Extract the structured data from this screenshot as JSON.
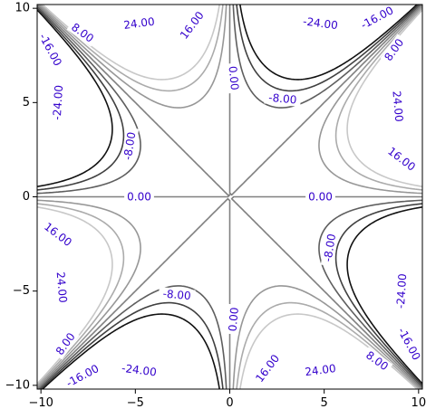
{
  "chart_data": {
    "type": "contour",
    "function": "x*y*(x^2 - y^2)/24",
    "xlim": [
      -10.2,
      10.2
    ],
    "ylim": [
      -10.2,
      10.2
    ],
    "x_ticks": [
      -10,
      -5,
      0,
      5,
      10
    ],
    "y_ticks": [
      -10,
      -5,
      0,
      5,
      10
    ],
    "x_tick_labels": [
      "−10",
      "−5",
      "0",
      "5",
      "10"
    ],
    "y_tick_labels": [
      "−10",
      "−5",
      "0",
      "5",
      "10"
    ],
    "grid": false,
    "levels": [
      {
        "value": -24,
        "label": "-24.00",
        "color": "#111111"
      },
      {
        "value": -16,
        "label": "-16.00",
        "color": "#404040"
      },
      {
        "value": -8,
        "label": "-8.00",
        "color": "#5e5e5e"
      },
      {
        "value": 0,
        "label": "0.00",
        "color": "#808080"
      },
      {
        "value": 8,
        "label": "8.00",
        "color": "#979797"
      },
      {
        "value": 16,
        "label": "16.00",
        "color": "#ababab"
      },
      {
        "value": 24,
        "label": "24.00",
        "color": "#c8c8c8"
      }
    ],
    "label_color": "#3300cc",
    "contour_labels": [
      {
        "text": "-24.00",
        "x": -9.1,
        "y": 5.0
      },
      {
        "text": "-24.00",
        "x": 4.8,
        "y": 9.2
      },
      {
        "text": "-24.00",
        "x": -4.8,
        "y": -9.2
      },
      {
        "text": "-24.00",
        "x": 9.1,
        "y": -5.0
      },
      {
        "text": "-16.00",
        "x": -9.5,
        "y": 7.8
      },
      {
        "text": "-16.00",
        "x": 7.8,
        "y": 9.5
      },
      {
        "text": "-16.00",
        "x": -7.8,
        "y": -9.5
      },
      {
        "text": "-16.00",
        "x": 9.5,
        "y": -7.8
      },
      {
        "text": "-8.00",
        "x": -5.3,
        "y": 2.7
      },
      {
        "text": "-8.00",
        "x": 2.8,
        "y": 5.2
      },
      {
        "text": "-8.00",
        "x": -2.8,
        "y": -5.2
      },
      {
        "text": "-8.00",
        "x": 5.3,
        "y": -2.7
      },
      {
        "text": "8.00",
        "x": -7.8,
        "y": 8.7
      },
      {
        "text": "8.00",
        "x": 8.7,
        "y": 7.8
      },
      {
        "text": "8.00",
        "x": -8.7,
        "y": -7.8
      },
      {
        "text": "8.00",
        "x": 7.8,
        "y": -8.7
      },
      {
        "text": "16.00",
        "x": -2.0,
        "y": 9.1
      },
      {
        "text": "16.00",
        "x": 9.1,
        "y": 2.0
      },
      {
        "text": "16.00",
        "x": -9.1,
        "y": -2.0
      },
      {
        "text": "16.00",
        "x": 2.0,
        "y": -9.1
      },
      {
        "text": "24.00",
        "x": -4.8,
        "y": 9.2
      },
      {
        "text": "24.00",
        "x": 8.9,
        "y": 4.8
      },
      {
        "text": "24.00",
        "x": -8.9,
        "y": -4.8
      },
      {
        "text": "24.00",
        "x": 4.8,
        "y": -9.2
      },
      {
        "text": "0.00",
        "x": -4.8,
        "y": 0.0
      },
      {
        "text": "0.00",
        "x": 4.8,
        "y": 0.0
      },
      {
        "text": "0.00",
        "x": 0.2,
        "y": 6.3
      },
      {
        "text": "0.00",
        "x": 0.2,
        "y": -6.5
      }
    ]
  }
}
